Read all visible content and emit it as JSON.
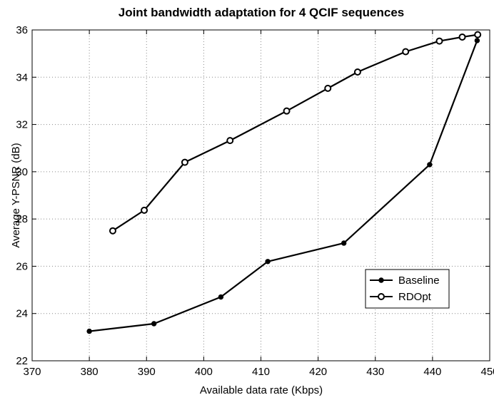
{
  "chart_data": {
    "type": "line",
    "title": "Joint bandwidth adaptation for 4 QCIF sequences",
    "xlabel": "Available data rate (Kbps)",
    "ylabel": "Average Y-PSNR (dB)",
    "xlim": [
      370,
      450
    ],
    "ylim": [
      22,
      36
    ],
    "xticks": [
      370,
      380,
      390,
      400,
      410,
      420,
      430,
      440,
      450
    ],
    "yticks": [
      22,
      24,
      26,
      28,
      30,
      32,
      34,
      36
    ],
    "grid": true,
    "legend_position": "lower-right",
    "series": [
      {
        "name": "Baseline",
        "marker": "filled-circle",
        "color": "#000000",
        "x": [
          380.0,
          391.3,
          403.0,
          411.2,
          424.5,
          439.5,
          447.8
        ],
        "y": [
          23.25,
          23.57,
          24.7,
          26.2,
          26.98,
          30.3,
          35.55
        ]
      },
      {
        "name": "RDOpt",
        "marker": "open-circle",
        "color": "#000000",
        "x": [
          384.1,
          389.6,
          396.7,
          404.6,
          414.5,
          421.7,
          426.9,
          435.3,
          441.2,
          445.2,
          447.9
        ],
        "y": [
          27.5,
          28.37,
          30.4,
          31.32,
          32.57,
          33.53,
          34.22,
          35.08,
          35.53,
          35.7,
          35.8
        ]
      }
    ]
  }
}
